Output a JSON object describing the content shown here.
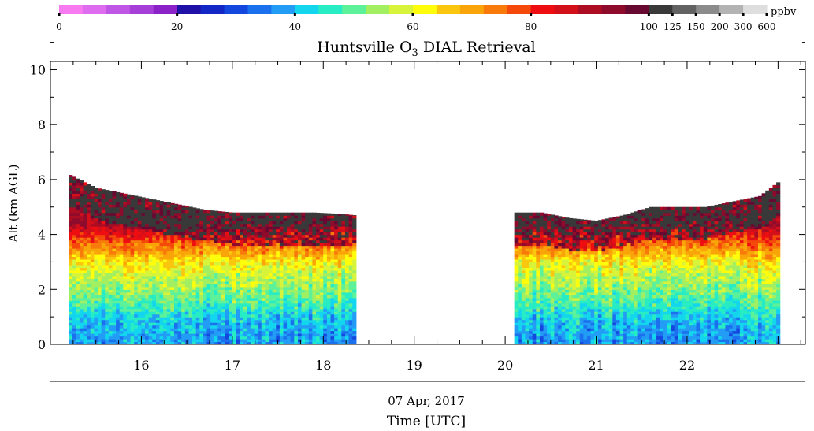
{
  "colorbar": {
    "colors": [
      "#f77af1",
      "#de6cee",
      "#bf56e6",
      "#a63fd8",
      "#8a22c8",
      "#1f10a8",
      "#1227c6",
      "#1447dd",
      "#1b70ee",
      "#229cf4",
      "#13d6ee",
      "#27ecc4",
      "#5df19a",
      "#a3ef62",
      "#d7f43a",
      "#fffd0b",
      "#fbc60e",
      "#f9a408",
      "#f77a0a",
      "#f5480b",
      "#ee0e11",
      "#d30f1a",
      "#ad0d23",
      "#8e0b2c",
      "#680932",
      "#393939",
      "#626262",
      "#8b8b8b",
      "#b3b3b3",
      "#dedede"
    ],
    "tick_labels": [
      "0",
      "20",
      "40",
      "60",
      "80",
      "100",
      "125",
      "150",
      "200",
      "300",
      "600"
    ],
    "unit": "ppbv"
  },
  "chart_data": {
    "type": "heatmap",
    "title_main": "Huntsville O",
    "title_sub": "3",
    "title_rest": " DIAL Retrieval",
    "ylabel": "Alt (km AGL)",
    "xlabel_date": "07 Apr, 2017",
    "xlabel": "Time [UTC]",
    "ylim": [
      0,
      10.3
    ],
    "xlim": [
      15.0,
      23.3
    ],
    "yticks": [
      0,
      2,
      4,
      6,
      8,
      10
    ],
    "xticks": [
      16,
      17,
      18,
      19,
      20,
      21,
      22
    ],
    "data_segments": [
      {
        "start": 15.2,
        "end": 18.35
      },
      {
        "start": 20.1,
        "end": 23.0
      }
    ],
    "top_altitude_km": {
      "x": [
        15.2,
        15.5,
        15.8,
        16.1,
        16.4,
        16.7,
        17.0,
        17.3,
        17.6,
        17.9,
        18.2,
        18.35,
        20.1,
        20.4,
        20.7,
        21.0,
        21.3,
        21.6,
        21.9,
        22.2,
        22.5,
        22.8,
        23.0
      ],
      "y": [
        6.2,
        5.7,
        5.5,
        5.3,
        5.1,
        4.9,
        4.8,
        4.8,
        4.8,
        4.8,
        4.75,
        4.7,
        4.8,
        4.8,
        4.6,
        4.5,
        4.7,
        5.0,
        5.0,
        5.0,
        5.2,
        5.4,
        5.9
      ]
    },
    "typical_profile_ppbv": {
      "alt_km": [
        0.0,
        0.5,
        1.0,
        1.5,
        2.0,
        2.5,
        3.0,
        3.5,
        4.0,
        4.5,
        5.0,
        5.5,
        6.0
      ],
      "ozone": [
        38,
        39,
        42,
        48,
        53,
        57,
        62,
        72,
        82,
        92,
        90,
        88,
        85
      ]
    }
  }
}
